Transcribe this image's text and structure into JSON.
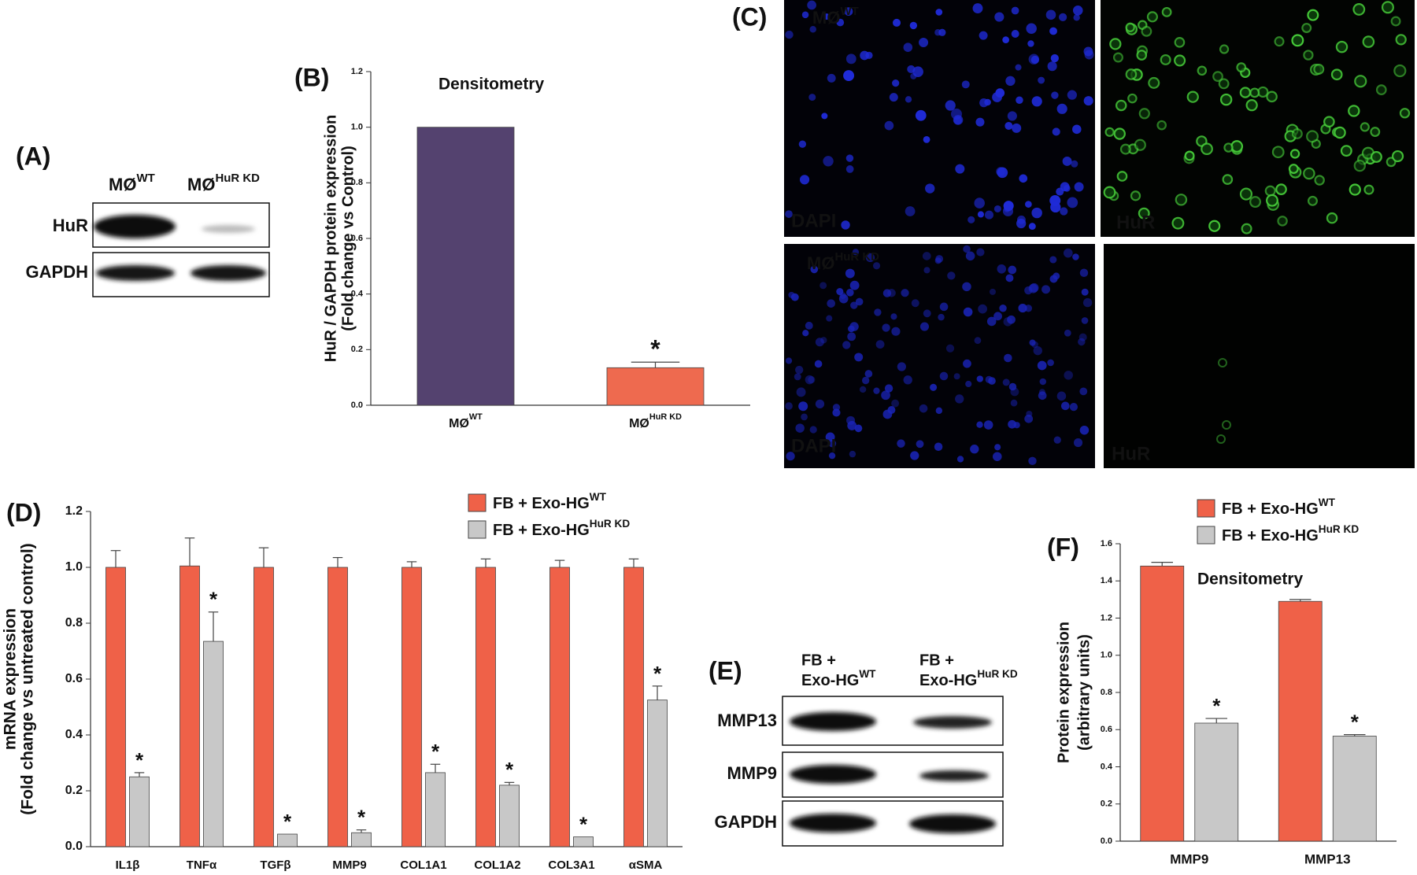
{
  "panel_a": {
    "label": "(A)",
    "columns": [
      {
        "text": "MØ",
        "sup": "WT"
      },
      {
        "text": "MØ",
        "sup": "HuR KD"
      }
    ],
    "rows": [
      "HuR",
      "GAPDH"
    ]
  },
  "panel_c": {
    "label": "(C)",
    "rows": [
      {
        "text": "MØ",
        "sup": "WT"
      },
      {
        "text": "MØ",
        "sup": "HuR KD"
      }
    ],
    "channels": [
      "DAPI",
      "HuR"
    ]
  },
  "panel_e": {
    "label": "(E)",
    "columns": [
      {
        "line1": "FB +",
        "text": "Exo-HG",
        "sup": "WT"
      },
      {
        "line1": "FB +",
        "text": "Exo-HG",
        "sup": "HuR KD"
      }
    ],
    "rows": [
      "MMP13",
      "MMP9",
      "GAPDH"
    ]
  },
  "chart_data": [
    {
      "type": "bar",
      "panel_label": "(B)",
      "title": "Densitometry",
      "y_label": [
        "HuR / GAPDH protein expression",
        "(Fold change vs Control)"
      ],
      "categories": [
        {
          "text": "MØ",
          "sup": "WT"
        },
        {
          "text": "MØ",
          "sup": "HuR KD"
        }
      ],
      "values": [
        1.0,
        0.135
      ],
      "errors": [
        null,
        0.02
      ],
      "annotations": [
        null,
        "*"
      ],
      "colors": [
        "#54426f",
        "#ee6a4f"
      ],
      "ylim": [
        0,
        1.2
      ],
      "yticks": [
        {
          "value": 0,
          "label": "0.0"
        },
        0.2,
        0.4,
        0.6,
        0.8,
        {
          "value": 1,
          "label": "1.0"
        },
        1.2
      ]
    },
    {
      "type": "bar",
      "panel_label": "(D)",
      "y_label": [
        "mRNA expression",
        "(Fold change vs untreated control)"
      ],
      "categories": [
        "IL1β",
        "TNFα",
        "TGFβ",
        "MMP9",
        "COL1A1",
        "COL1A2",
        "COL3A1",
        "αSMA"
      ],
      "series": [
        {
          "name": {
            "text": "FB + Exo-HG",
            "sup": "WT"
          },
          "color": "#ef6148",
          "values": [
            1.0,
            1.005,
            1.0,
            1.0,
            1.0,
            1.0,
            1.0,
            1.0
          ],
          "errors": [
            0.06,
            0.1,
            0.07,
            0.035,
            0.02,
            0.03,
            0.025,
            0.03
          ]
        },
        {
          "name": {
            "text": "FB + Exo-HG",
            "sup": "HuR KD"
          },
          "color": "#c8c8c8",
          "values": [
            0.25,
            0.735,
            0.045,
            0.05,
            0.265,
            0.22,
            0.035,
            0.525
          ],
          "errors": [
            0.015,
            0.105,
            null,
            0.01,
            0.03,
            0.01,
            null,
            0.05
          ],
          "annotations": [
            "*",
            "*",
            "*",
            "*",
            "*",
            "*",
            "*",
            "*"
          ]
        }
      ],
      "ylim": [
        0,
        1.2
      ],
      "yticks": [
        {
          "value": 0,
          "label": "0.0"
        },
        0.2,
        0.4,
        0.6,
        0.8,
        {
          "value": 1,
          "label": "1.0"
        },
        1.2
      ]
    },
    {
      "type": "bar",
      "panel_label": "(F)",
      "title": "Densitometry",
      "y_label": [
        "Protein expression",
        "(arbitrary units)"
      ],
      "categories": [
        "MMP9",
        "MMP13"
      ],
      "series": [
        {
          "name": {
            "text": "FB + Exo-HG",
            "sup": "WT"
          },
          "color": "#ef6148",
          "values": [
            1.48,
            1.29
          ],
          "errors": [
            0.02,
            0.01
          ]
        },
        {
          "name": {
            "text": "FB + Exo-HG",
            "sup": "HuR KD"
          },
          "color": "#c8c8c8",
          "values": [
            0.635,
            0.565
          ],
          "errors": [
            0.025,
            0.008
          ],
          "annotations": [
            "*",
            "*"
          ]
        }
      ],
      "ylim": [
        0,
        1.6
      ],
      "yticks": [
        {
          "value": 0,
          "label": "0.0"
        },
        0.2,
        0.4,
        0.6,
        0.8,
        {
          "value": 1,
          "label": "1.0"
        },
        1.2,
        1.4,
        1.6
      ]
    }
  ]
}
